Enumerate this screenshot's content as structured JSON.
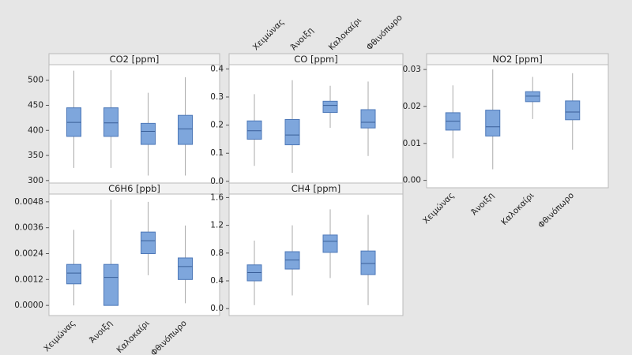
{
  "chart_data": [
    {
      "type": "box",
      "title": "CO2 [ppm]",
      "ylim": [
        295,
        531
      ],
      "yticks": [
        300,
        350,
        400,
        450,
        500
      ],
      "color": "#7ea6dc",
      "values": [
        {
          "low": 325,
          "q1": 388,
          "median": 416,
          "q3": 445,
          "high": 519
        },
        {
          "low": 325,
          "q1": 388,
          "median": 415,
          "q3": 445,
          "high": 520
        },
        {
          "low": 310,
          "q1": 372,
          "median": 398,
          "q3": 414,
          "high": 475
        },
        {
          "low": 310,
          "q1": 372,
          "median": 403,
          "q3": 430,
          "high": 506
        }
      ]
    },
    {
      "type": "box",
      "title": "C6H6 [ppb]",
      "ylim": [
        -0.00047,
        0.00516
      ],
      "yticks": [
        {
          "value": 0,
          "label": "0.0000"
        },
        0.0012,
        0.0024,
        0.0036,
        0.0048
      ],
      "color": "#7ea6dc",
      "categories": [
        "Χειμώνας",
        "Άνοιξη",
        "Καλοκαίρι",
        "Φθινόπωρο"
      ],
      "category_side": "bottom",
      "values": [
        {
          "low": 0,
          "q1": 0.001,
          "median": 0.0015,
          "q3": 0.0019,
          "high": 0.0035
        },
        {
          "low": 0,
          "q1": 0,
          "median": 0.0013,
          "q3": 0.0019,
          "high": 0.0049
        },
        {
          "low": 0.0014,
          "q1": 0.0024,
          "median": 0.003,
          "q3": 0.0034,
          "high": 0.0048
        },
        {
          "low": 0.0001,
          "q1": 0.0012,
          "median": 0.0018,
          "q3": 0.0022,
          "high": 0.0037
        }
      ]
    },
    {
      "type": "box",
      "title": "CO [ppm]",
      "ylim": [
        -0.02,
        0.415
      ],
      "yticks": [
        {
          "value": 0,
          "label": "0.0"
        },
        0.1,
        0.2,
        0.3,
        0.4
      ],
      "color": "#7ea6dc",
      "categories": [
        "Χειμώνας",
        "Άνοιξη",
        "Καλοκαίρι",
        "Φθινόπωρο"
      ],
      "category_side": "top",
      "values": [
        {
          "low": 0.055,
          "q1": 0.15,
          "median": 0.18,
          "q3": 0.215,
          "high": 0.31
        },
        {
          "low": 0.03,
          "q1": 0.13,
          "median": 0.165,
          "q3": 0.22,
          "high": 0.36
        },
        {
          "low": 0.19,
          "q1": 0.245,
          "median": 0.27,
          "q3": 0.285,
          "high": 0.34
        },
        {
          "low": 0.09,
          "q1": 0.19,
          "median": 0.21,
          "q3": 0.255,
          "high": 0.355
        }
      ]
    },
    {
      "type": "box",
      "title": "CH4 [ppm]",
      "ylim": [
        -0.1,
        1.65
      ],
      "yticks": [
        {
          "value": 0,
          "label": "0.0"
        },
        0.4,
        0.8,
        1.2,
        1.6
      ],
      "color": "#7ea6dc",
      "values": [
        {
          "low": 0.05,
          "q1": 0.4,
          "median": 0.52,
          "q3": 0.63,
          "high": 0.98
        },
        {
          "low": 0.19,
          "q1": 0.57,
          "median": 0.7,
          "q3": 0.82,
          "high": 1.2
        },
        {
          "low": 0.44,
          "q1": 0.81,
          "median": 0.97,
          "q3": 1.06,
          "high": 1.43
        },
        {
          "low": 0.05,
          "q1": 0.49,
          "median": 0.65,
          "q3": 0.83,
          "high": 1.35
        }
      ]
    },
    {
      "type": "box",
      "title": "NO2 [ppm]",
      "ylim": [
        -0.002,
        0.0313
      ],
      "yticks": [
        {
          "value": 0,
          "label": "0.00"
        },
        0.01,
        0.02,
        0.03
      ],
      "color": "#7ea6dc",
      "categories": [
        "Χειμώνας",
        "Άνοιξη",
        "Καλοκαίρι",
        "Φθινόπωρο"
      ],
      "category_side": "bottom",
      "values": [
        {
          "low": 0.006,
          "q1": 0.0136,
          "median": 0.016,
          "q3": 0.0183,
          "high": 0.0257
        },
        {
          "low": 0.003,
          "q1": 0.012,
          "median": 0.0145,
          "q3": 0.019,
          "high": 0.03
        },
        {
          "low": 0.0166,
          "q1": 0.0213,
          "median": 0.0228,
          "q3": 0.024,
          "high": 0.028
        },
        {
          "low": 0.0083,
          "q1": 0.0164,
          "median": 0.0185,
          "q3": 0.0215,
          "high": 0.029
        }
      ]
    }
  ]
}
